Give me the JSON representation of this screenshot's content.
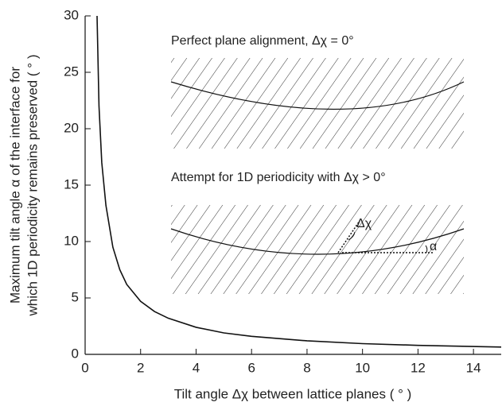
{
  "chart_data": {
    "type": "line",
    "x_label": "Tilt angle Δχ between lattice planes ( ° )",
    "y_label": [
      "Maximum tilt angle α of the interface for",
      "which 1D periodicity remains preserved ( ° )"
    ],
    "annotations": [
      "Perfect plane alignment, Δχ = 0°",
      "Attempt for 1D periodicity with Δχ > 0°",
      "Δχ",
      "α"
    ],
    "x": [
      0.43,
      0.5,
      0.6,
      0.75,
      1,
      1.25,
      1.5,
      2,
      2.5,
      3,
      4,
      5,
      6,
      8,
      10,
      12,
      15
    ],
    "series": [
      {
        "color": "#111111",
        "values": [
          30,
          22,
          17,
          13.2,
          9.5,
          7.5,
          6.2,
          4.7,
          3.8,
          3.2,
          2.4,
          1.9,
          1.6,
          1.2,
          0.95,
          0.8,
          0.65
        ]
      }
    ],
    "xlim": [
      0,
      15
    ],
    "ylim": [
      0,
      30
    ],
    "xticks": [
      0,
      2,
      4,
      6,
      8,
      10,
      12,
      14
    ],
    "yticks": [
      0,
      5,
      10,
      15,
      20,
      25,
      30
    ]
  }
}
